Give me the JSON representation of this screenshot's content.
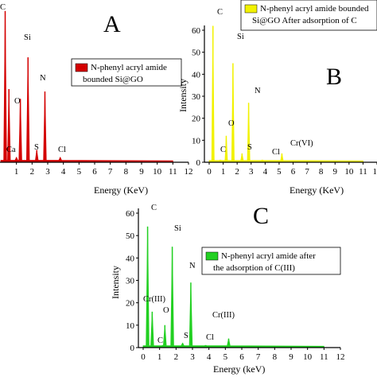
{
  "chart_data": [
    {
      "id": "A",
      "type": "area",
      "panel_letter": "A",
      "xlabel": "Energy (KeV)",
      "ylabel": "",
      "xlim": [
        0,
        12
      ],
      "ylim": [
        0,
        60
      ],
      "xticks": [
        1,
        2,
        3,
        4,
        5,
        6,
        7,
        8,
        9,
        10,
        11,
        12
      ],
      "color": "#d40000",
      "legend": [
        "N-phenyl acryl amide",
        "bounded Si@GO"
      ],
      "peaks": [
        {
          "x": 0.28,
          "y": 62,
          "label": "C"
        },
        {
          "x": 0.52,
          "y": 30,
          "label": ""
        },
        {
          "x": 1.0,
          "y": 2,
          "label": "Ca"
        },
        {
          "x": 1.25,
          "y": 26,
          "label": "O"
        },
        {
          "x": 1.74,
          "y": 43,
          "label": "Si"
        },
        {
          "x": 2.3,
          "y": 5,
          "label": "S"
        },
        {
          "x": 2.82,
          "y": 29,
          "label": "N"
        },
        {
          "x": 3.8,
          "y": 2,
          "label": "Cl"
        }
      ]
    },
    {
      "id": "B",
      "type": "area",
      "panel_letter": "B",
      "xlabel": "Energy (KeV)",
      "ylabel": "Intensity",
      "xlim": [
        0,
        12
      ],
      "ylim": [
        0,
        60
      ],
      "xticks": [
        0,
        1,
        2,
        3,
        4,
        5,
        6,
        7,
        8,
        9,
        10,
        11,
        12
      ],
      "yticks": [
        0,
        10,
        20,
        30,
        40,
        50,
        60
      ],
      "color": "#f2f200",
      "legend": [
        "N-phenyl acryl amide bounded",
        "Si@GO After adsorption of C"
      ],
      "peaks": [
        {
          "x": 0.27,
          "y": 62,
          "label": "C"
        },
        {
          "x": 0.8,
          "y": 1,
          "label": "C"
        },
        {
          "x": 1.22,
          "y": 12,
          "label": "O"
        },
        {
          "x": 1.7,
          "y": 45,
          "label": "Si"
        },
        {
          "x": 2.35,
          "y": 4,
          "label": "S"
        },
        {
          "x": 2.82,
          "y": 27,
          "label": "N"
        },
        {
          "x": 3.8,
          "y": 1,
          "label": "Cl"
        },
        {
          "x": 5.2,
          "y": 4,
          "label": "Cr(VI)"
        }
      ]
    },
    {
      "id": "C",
      "type": "area",
      "panel_letter": "C",
      "xlabel": "Energy (keV)",
      "ylabel": "Intensity",
      "xlim": [
        0,
        12
      ],
      "ylim": [
        0,
        60
      ],
      "xticks": [
        0,
        1,
        2,
        3,
        4,
        5,
        6,
        7,
        8,
        9,
        10,
        11,
        12
      ],
      "yticks": [
        0,
        10,
        20,
        30,
        40,
        50,
        60
      ],
      "color": "#22d022",
      "legend": [
        "N-phenyl acryl amide after",
        "the adsorption of C(III)"
      ],
      "peaks": [
        {
          "x": 0.27,
          "y": 54,
          "label": "C"
        },
        {
          "x": 0.55,
          "y": 16,
          "label": "Cr(III)"
        },
        {
          "x": 1.2,
          "y": 1,
          "label": "C"
        },
        {
          "x": 1.32,
          "y": 10,
          "label": "O"
        },
        {
          "x": 1.77,
          "y": 45,
          "label": "Si"
        },
        {
          "x": 2.4,
          "y": 2,
          "label": "S"
        },
        {
          "x": 2.9,
          "y": 29,
          "label": "N"
        },
        {
          "x": 3.8,
          "y": 1,
          "label": "Cl"
        },
        {
          "x": 5.2,
          "y": 4,
          "label": "Cr(III)"
        }
      ]
    }
  ]
}
